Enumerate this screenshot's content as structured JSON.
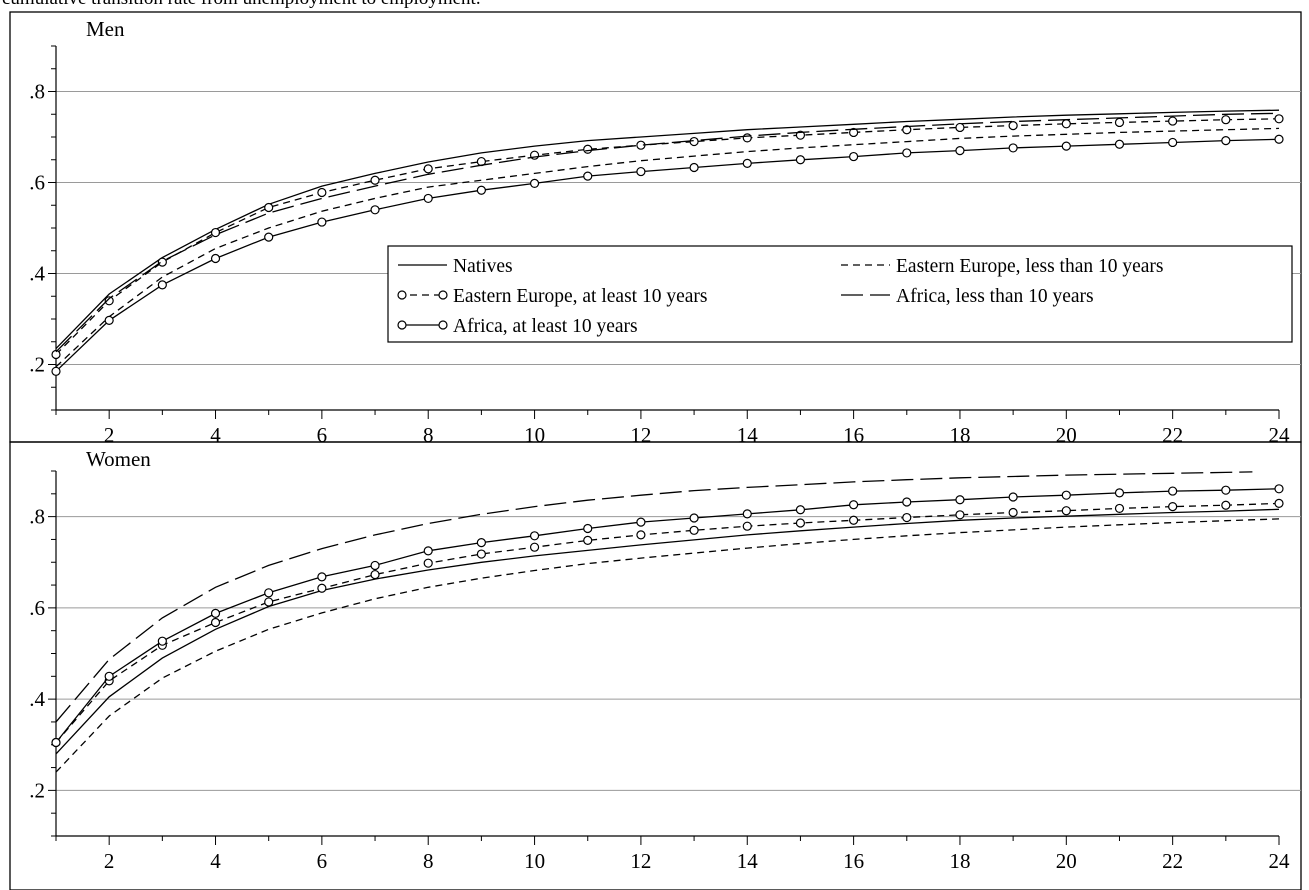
{
  "caption": "cumulative transition rate from unemployment to employment.",
  "chart_data": [
    {
      "type": "line",
      "title": "Men",
      "xlim": [
        1,
        24
      ],
      "ylim": [
        0.1,
        0.9
      ],
      "xticks": [
        2,
        4,
        6,
        8,
        10,
        12,
        14,
        16,
        18,
        20,
        22,
        24
      ],
      "xtick_labels": [
        "2",
        "4",
        "6",
        "8",
        "10",
        "12",
        "14",
        "16",
        "18",
        "20",
        "22",
        "24"
      ],
      "yticks": [
        0.2,
        0.4,
        0.6,
        0.8
      ],
      "ytick_labels": [
        ".2",
        ".4",
        ".6",
        ".8"
      ],
      "grid": true,
      "legend_position": "right-middle",
      "series": [
        {
          "name": "Natives",
          "style": "solid",
          "markers": false,
          "x": [
            1,
            2,
            3,
            4,
            5,
            6,
            7,
            8,
            9,
            10,
            11,
            12,
            13,
            14,
            15,
            16,
            17,
            18,
            19,
            20,
            21,
            22,
            23,
            24
          ],
          "y": [
            0.235,
            0.355,
            0.435,
            0.497,
            0.552,
            0.592,
            0.62,
            0.645,
            0.665,
            0.68,
            0.692,
            0.7,
            0.708,
            0.716,
            0.722,
            0.728,
            0.734,
            0.739,
            0.744,
            0.748,
            0.751,
            0.754,
            0.757,
            0.759
          ]
        },
        {
          "name": "Eastern Europe, less than 10 years",
          "style": "dashed",
          "markers": false,
          "x": [
            1,
            2,
            3,
            4,
            5,
            6,
            7,
            8,
            9,
            10,
            11,
            12,
            13,
            14,
            15,
            16,
            17,
            18,
            19,
            20,
            21,
            22,
            23,
            24
          ],
          "y": [
            0.195,
            0.305,
            0.392,
            0.455,
            0.5,
            0.537,
            0.565,
            0.59,
            0.605,
            0.62,
            0.635,
            0.648,
            0.658,
            0.668,
            0.676,
            0.683,
            0.69,
            0.697,
            0.702,
            0.706,
            0.71,
            0.713,
            0.716,
            0.719
          ]
        },
        {
          "name": "Eastern Europe, at least 10 years",
          "style": "dashed",
          "markers": true,
          "x": [
            1,
            2,
            3,
            4,
            5,
            6,
            7,
            8,
            9,
            10,
            11,
            12,
            13,
            14,
            15,
            16,
            17,
            18,
            19,
            20,
            21,
            22,
            23,
            24
          ],
          "y": [
            0.222,
            0.34,
            0.425,
            0.49,
            0.545,
            0.578,
            0.605,
            0.63,
            0.646,
            0.66,
            0.673,
            0.682,
            0.69,
            0.698,
            0.704,
            0.71,
            0.716,
            0.721,
            0.725,
            0.729,
            0.732,
            0.735,
            0.738,
            0.74
          ]
        },
        {
          "name": "Africa, less than 10 years",
          "style": "longdash",
          "markers": false,
          "x": [
            1,
            2,
            3,
            4,
            5,
            6,
            7,
            8,
            9,
            10,
            11,
            12,
            13,
            14,
            15,
            16,
            17,
            18,
            19,
            20,
            21,
            22,
            23,
            24
          ],
          "y": [
            0.228,
            0.345,
            0.427,
            0.485,
            0.533,
            0.565,
            0.592,
            0.618,
            0.638,
            0.656,
            0.67,
            0.682,
            0.692,
            0.702,
            0.71,
            0.717,
            0.723,
            0.729,
            0.734,
            0.738,
            0.742,
            0.746,
            0.75,
            0.752
          ]
        },
        {
          "name": "Africa, at least 10 years",
          "style": "solid",
          "markers": true,
          "x": [
            1,
            2,
            3,
            4,
            5,
            6,
            7,
            8,
            9,
            10,
            11,
            12,
            13,
            14,
            15,
            16,
            17,
            18,
            19,
            20,
            21,
            22,
            23,
            24
          ],
          "y": [
            0.185,
            0.297,
            0.375,
            0.433,
            0.48,
            0.513,
            0.54,
            0.565,
            0.583,
            0.598,
            0.614,
            0.624,
            0.633,
            0.642,
            0.65,
            0.657,
            0.665,
            0.67,
            0.676,
            0.68,
            0.684,
            0.688,
            0.692,
            0.695
          ]
        }
      ]
    },
    {
      "type": "line",
      "title": "Women",
      "xlim": [
        1,
        24
      ],
      "ylim": [
        0.1,
        0.9
      ],
      "xticks": [
        2,
        4,
        6,
        8,
        10,
        12,
        14,
        16,
        18,
        20,
        22,
        24
      ],
      "xtick_labels": [
        "2",
        "4",
        "6",
        "8",
        "10",
        "12",
        "14",
        "16",
        "18",
        "20",
        "22",
        "24"
      ],
      "yticks": [
        0.2,
        0.4,
        0.6,
        0.8
      ],
      "ytick_labels": [
        ".2",
        ".4",
        ".6",
        ".8"
      ],
      "grid": true,
      "series": [
        {
          "name": "Natives",
          "style": "solid",
          "markers": false,
          "x": [
            1,
            2,
            3,
            4,
            5,
            6,
            7,
            8,
            9,
            10,
            11,
            12,
            13,
            14,
            15,
            16,
            17,
            18,
            19,
            20,
            21,
            22,
            23,
            24
          ],
          "y": [
            0.28,
            0.405,
            0.49,
            0.553,
            0.603,
            0.638,
            0.663,
            0.683,
            0.7,
            0.714,
            0.726,
            0.738,
            0.749,
            0.76,
            0.769,
            0.777,
            0.785,
            0.792,
            0.797,
            0.801,
            0.805,
            0.809,
            0.812,
            0.816
          ]
        },
        {
          "name": "Eastern Europe, less than 10 years",
          "style": "dashed",
          "markers": false,
          "x": [
            1,
            2,
            3,
            4,
            5,
            6,
            7,
            8,
            9,
            10,
            11,
            12,
            13,
            14,
            15,
            16,
            17,
            18,
            19,
            20,
            21,
            22,
            23,
            24
          ],
          "y": [
            0.24,
            0.363,
            0.446,
            0.505,
            0.553,
            0.589,
            0.62,
            0.645,
            0.665,
            0.682,
            0.697,
            0.709,
            0.72,
            0.731,
            0.741,
            0.75,
            0.758,
            0.765,
            0.771,
            0.777,
            0.782,
            0.787,
            0.791,
            0.795
          ]
        },
        {
          "name": "Eastern Europe, at least 10 years",
          "style": "dashed",
          "markers": true,
          "x": [
            1,
            2,
            3,
            4,
            5,
            6,
            7,
            8,
            9,
            10,
            11,
            12,
            13,
            14,
            15,
            16,
            17,
            18,
            19,
            20,
            21,
            22,
            23,
            24
          ],
          "y": [
            0.305,
            0.44,
            0.518,
            0.568,
            0.613,
            0.643,
            0.673,
            0.698,
            0.718,
            0.733,
            0.748,
            0.76,
            0.77,
            0.779,
            0.786,
            0.792,
            0.798,
            0.804,
            0.809,
            0.813,
            0.818,
            0.822,
            0.825,
            0.829
          ]
        },
        {
          "name": "Africa, less than 10 years",
          "style": "longdash",
          "markers": false,
          "x": [
            1,
            2,
            3,
            4,
            5,
            6,
            7,
            8,
            9,
            10,
            11,
            12,
            13,
            14,
            15,
            16,
            17,
            18,
            19,
            20,
            21,
            22,
            23,
            23.5
          ],
          "y": [
            0.35,
            0.487,
            0.578,
            0.645,
            0.693,
            0.73,
            0.76,
            0.785,
            0.805,
            0.822,
            0.836,
            0.847,
            0.857,
            0.864,
            0.87,
            0.876,
            0.881,
            0.885,
            0.888,
            0.891,
            0.893,
            0.895,
            0.897,
            0.898
          ]
        },
        {
          "name": "Africa, at least 10 years",
          "style": "solid",
          "markers": true,
          "x": [
            1,
            2,
            3,
            4,
            5,
            6,
            7,
            8,
            9,
            10,
            11,
            12,
            13,
            14,
            15,
            16,
            17,
            18,
            19,
            20,
            21,
            22,
            23,
            24
          ],
          "y": [
            0.305,
            0.45,
            0.527,
            0.588,
            0.633,
            0.668,
            0.693,
            0.725,
            0.743,
            0.758,
            0.774,
            0.788,
            0.797,
            0.806,
            0.815,
            0.826,
            0.832,
            0.837,
            0.843,
            0.847,
            0.852,
            0.856,
            0.858,
            0.861
          ]
        }
      ]
    }
  ]
}
